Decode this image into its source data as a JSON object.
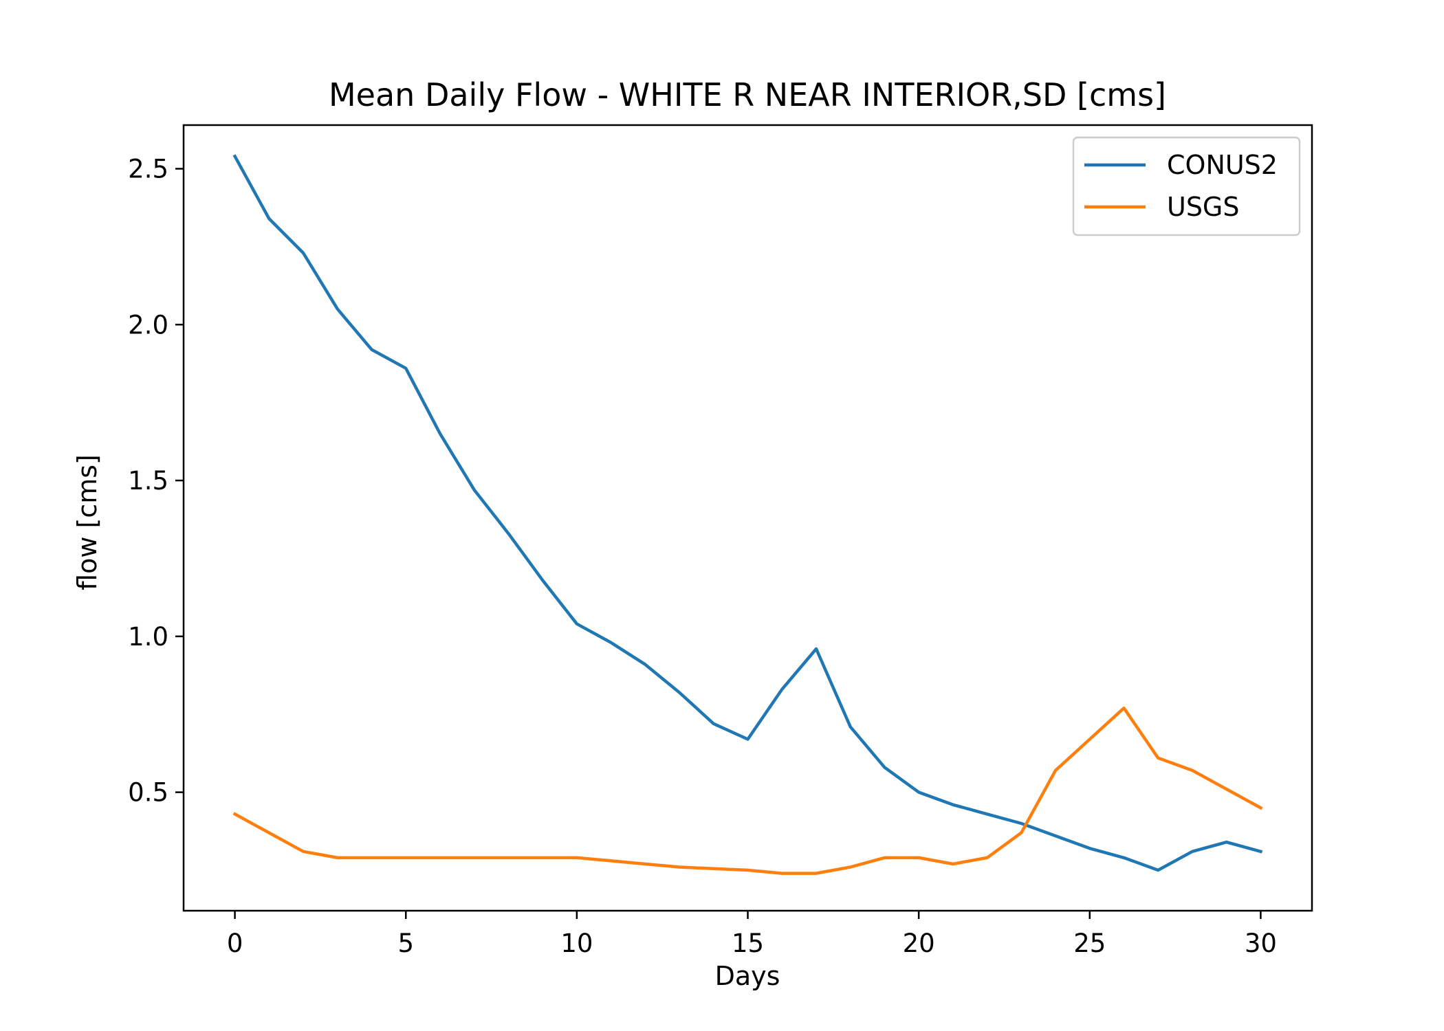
{
  "chart_data": {
    "type": "line",
    "title": "Mean Daily Flow - WHITE R NEAR INTERIOR,SD [cms]",
    "xlabel": "Days",
    "ylabel": "flow [cms]",
    "xlim": [
      -1.5,
      31.5
    ],
    "ylim": [
      0.12,
      2.64
    ],
    "xticks": [
      0,
      5,
      10,
      15,
      20,
      25,
      30
    ],
    "xtick_labels": [
      "0",
      "5",
      "10",
      "15",
      "20",
      "25",
      "30"
    ],
    "yticks": [
      0.5,
      1.0,
      1.5,
      2.0,
      2.5
    ],
    "ytick_labels": [
      "0.5",
      "1.0",
      "1.5",
      "2.0",
      "2.5"
    ],
    "grid": false,
    "legend_position": "top-right",
    "x": [
      0,
      1,
      2,
      3,
      4,
      5,
      6,
      7,
      8,
      9,
      10,
      11,
      12,
      13,
      14,
      15,
      16,
      17,
      18,
      19,
      20,
      21,
      22,
      23,
      24,
      25,
      26,
      27,
      28,
      29,
      30
    ],
    "series": [
      {
        "name": "CONUS2",
        "color": "#1f77b4",
        "values": [
          2.54,
          2.34,
          2.23,
          2.05,
          1.92,
          1.86,
          1.65,
          1.47,
          1.33,
          1.18,
          1.04,
          0.98,
          0.91,
          0.82,
          0.72,
          0.67,
          0.83,
          0.96,
          0.71,
          0.58,
          0.5,
          0.46,
          0.43,
          0.4,
          0.36,
          0.32,
          0.29,
          0.25,
          0.31,
          0.34,
          0.31
        ]
      },
      {
        "name": "USGS",
        "color": "#ff7f0e",
        "values": [
          0.43,
          0.37,
          0.31,
          0.29,
          0.29,
          0.29,
          0.29,
          0.29,
          0.29,
          0.29,
          0.29,
          0.28,
          0.27,
          0.26,
          0.255,
          0.25,
          0.24,
          0.24,
          0.26,
          0.29,
          0.29,
          0.27,
          0.29,
          0.37,
          0.57,
          0.67,
          0.77,
          0.61,
          0.57,
          0.51,
          0.45
        ]
      }
    ]
  }
}
